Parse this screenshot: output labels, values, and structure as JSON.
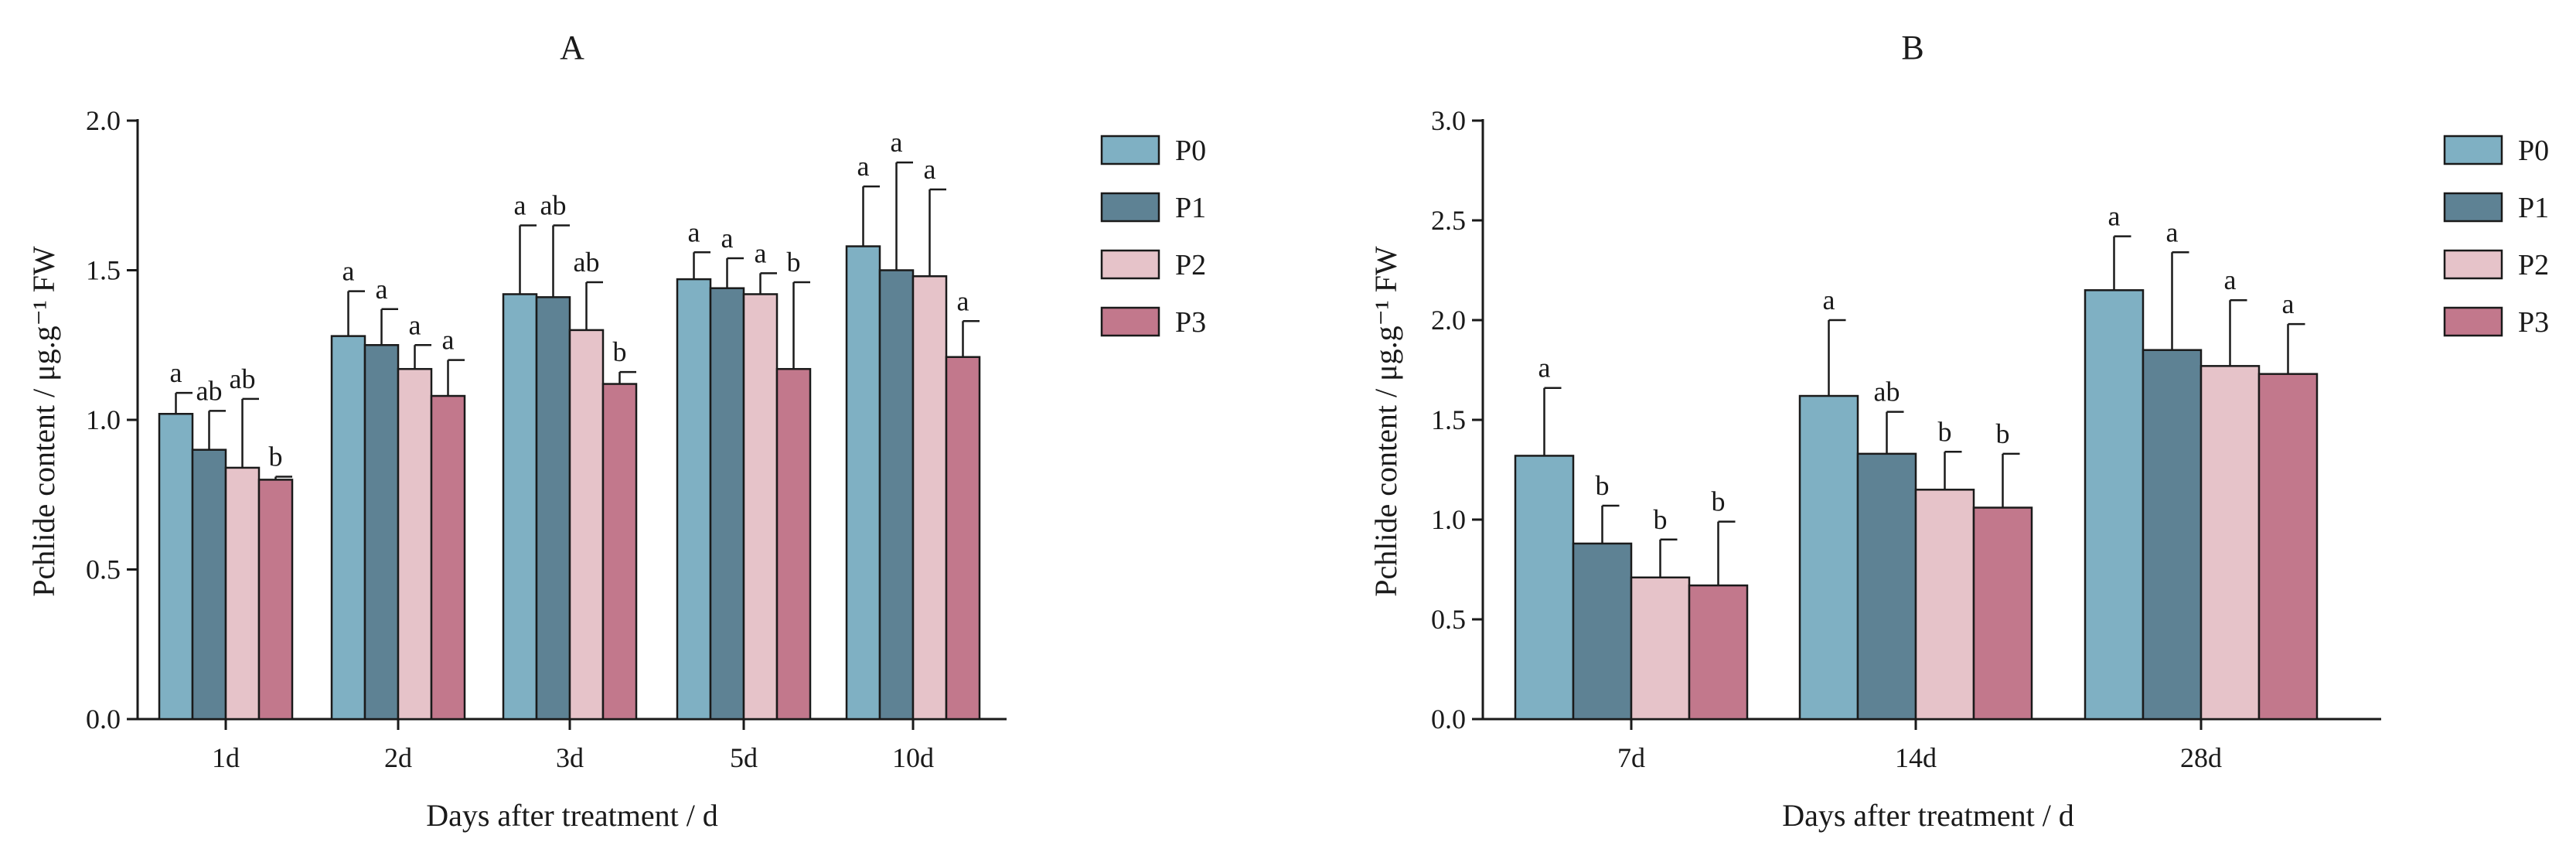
{
  "chart_data": [
    {
      "type": "bar",
      "title": "A",
      "xlabel": "Days after treatment / d",
      "ylabel": "Pchlide content / μg.g⁻¹ FW",
      "ylim": [
        0,
        2.0
      ],
      "yticks": [
        "0.0",
        "0.5",
        "1.0",
        "1.5",
        "2.0"
      ],
      "categories": [
        "1d",
        "2d",
        "3d",
        "5d",
        "10d"
      ],
      "series": [
        {
          "name": "P0",
          "color": "#7fb0c3",
          "values": [
            1.02,
            1.28,
            1.42,
            1.47,
            1.58
          ],
          "errors": [
            0.07,
            0.15,
            0.23,
            0.09,
            0.2
          ],
          "letters": [
            "a",
            "a",
            "a",
            "a",
            "a"
          ]
        },
        {
          "name": "P1",
          "color": "#5e8294",
          "values": [
            0.9,
            1.25,
            1.41,
            1.44,
            1.5
          ],
          "errors": [
            0.13,
            0.12,
            0.24,
            0.1,
            0.36
          ],
          "letters": [
            "ab",
            "a",
            "ab",
            "a",
            "a"
          ]
        },
        {
          "name": "P2",
          "color": "#e6c3c9",
          "values": [
            0.84,
            1.17,
            1.3,
            1.42,
            1.48
          ],
          "errors": [
            0.23,
            0.08,
            0.16,
            0.07,
            0.29
          ],
          "letters": [
            "ab",
            "a",
            "ab",
            "a",
            "a"
          ]
        },
        {
          "name": "P3",
          "color": "#c2788c",
          "values": [
            0.8,
            1.08,
            1.12,
            1.17,
            1.21
          ],
          "errors": [
            0.01,
            0.12,
            0.04,
            0.29,
            0.12
          ],
          "letters": [
            "b",
            "a",
            "b",
            "b",
            "a"
          ]
        }
      ]
    },
    {
      "type": "bar",
      "title": "B",
      "xlabel": "Days after treatment / d",
      "ylabel": "Pchlide content / μg.g⁻¹ FW",
      "ylim": [
        0,
        3.0
      ],
      "yticks": [
        "0.0",
        "0.5",
        "1.0",
        "1.5",
        "2.0",
        "2.5",
        "3.0"
      ],
      "categories": [
        "7d",
        "14d",
        "28d"
      ],
      "series": [
        {
          "name": "P0",
          "color": "#7fb0c3",
          "values": [
            1.32,
            1.62,
            2.15
          ],
          "errors": [
            0.34,
            0.38,
            0.27
          ],
          "letters": [
            "a",
            "a",
            "a"
          ]
        },
        {
          "name": "P1",
          "color": "#5e8294",
          "values": [
            0.88,
            1.33,
            1.85
          ],
          "errors": [
            0.19,
            0.21,
            0.49
          ],
          "letters": [
            "b",
            "ab",
            "a"
          ]
        },
        {
          "name": "P2",
          "color": "#e6c3c9",
          "values": [
            0.71,
            1.15,
            1.77
          ],
          "errors": [
            0.19,
            0.19,
            0.33
          ],
          "letters": [
            "b",
            "b",
            "a"
          ]
        },
        {
          "name": "P3",
          "color": "#c2788c",
          "values": [
            0.67,
            1.06,
            1.73
          ],
          "errors": [
            0.32,
            0.27,
            0.25
          ],
          "letters": [
            "b",
            "b",
            "a"
          ]
        }
      ]
    }
  ]
}
